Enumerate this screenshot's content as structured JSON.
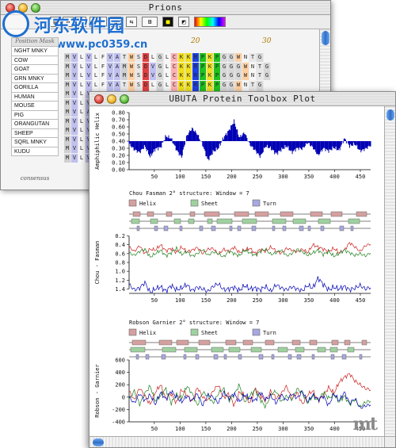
{
  "watermark": {
    "site": "河东软件园",
    "url": "www.pc0359.cn"
  },
  "prions_window": {
    "title": "Prions",
    "position_mask_label": "Position Mask",
    "consensus_label": "consensus",
    "ruler_marks": [
      "20",
      "30"
    ],
    "species": [
      "NGHT MNKY",
      "COW",
      "GOAT",
      "GRN MNKY",
      "GORILLA",
      "HUMAN",
      "MOUSE",
      "PIG",
      "ORANGUTAN",
      "SHEEP",
      "SQRL MNKY",
      "KUDU"
    ],
    "sequences": [
      "MVLVLFVATWSDLGLCKKRPKPGGWNTG",
      "MVLVLFVAMWSDVGLCKKRPKPGGGWNTG",
      "MVLVLFVAMWSDVGLCKKRPKPGGGWNTG",
      "MVLVLFVATWSDLGLCKKRPKPGGWNTG",
      "MVLVLFVATWSDLGLCKKRPKPGGWNTG",
      "MVLVLFVATWSDLGLCKKRPKPGGWNTG",
      "MVLALFVAMWTDVGLCKKRPKPGGWNTG",
      "MVLVLFVATWSDLGLCKKRPKPGGWNTG",
      "MVLVLFVATWSDLGLCKKRPKPGGWNTG",
      "MVLVLFVAMWSDVGLCKKRPKPGGGWNTG",
      "MVLVLFVATWSDLGLCKKRPKPGGWNTG",
      "MVLVLFVAMWSDVGLCKKRPKPGGGWNTG"
    ]
  },
  "plot_window": {
    "title": "UBUTA Protein Toolbox Plot",
    "legend": {
      "helix": "Helix",
      "sheet": "Sheet",
      "turn": "Turn"
    },
    "colors": {
      "helix": "#d4a0a0",
      "sheet": "#a0d0a0",
      "turn": "#a8a8e0",
      "blue": "#0000b4",
      "red": "#cc2020",
      "green": "#208020"
    },
    "logo": "mt"
  },
  "chart_data": [
    {
      "type": "bar",
      "title": "",
      "ylabel": "Amphiphilic Helix",
      "xlabel": "",
      "xticks": [
        50,
        100,
        150,
        200,
        250,
        300,
        350,
        400,
        450
      ],
      "yticks": [
        "0.00",
        "0.10",
        "0.20",
        "0.30",
        "0.40",
        "0.50",
        "0.60",
        "0.70",
        "0.80"
      ],
      "ylim": [
        0,
        0.8
      ],
      "xlim": [
        1,
        470
      ],
      "baseline": 0.4,
      "series": [
        {
          "color": "#0000b4",
          "values_every_10": [
            0.36,
            0.28,
            0.24,
            0.33,
            0.18,
            0.29,
            0.31,
            0.47,
            0.44,
            0.28,
            0.17,
            0.48,
            0.58,
            0.5,
            0.35,
            0.13,
            0.25,
            0.3,
            0.45,
            0.55,
            0.68,
            0.45,
            0.52,
            0.35,
            0.27,
            0.18,
            0.33,
            0.3,
            0.22,
            0.28,
            0.33,
            0.24,
            0.3,
            0.29,
            0.38,
            0.31,
            0.2,
            0.3,
            0.26,
            0.31,
            0.27,
            0.44,
            0.33,
            0.36,
            0.26,
            0.29,
            0.34
          ]
        }
      ]
    },
    {
      "type": "line",
      "title": "Chou Fasman 2° structure:  Window = 7",
      "ylabel": "Chou - Fasman",
      "xticks": [
        50,
        100,
        150,
        200,
        250,
        300,
        350,
        400,
        450
      ],
      "yticks": [
        "0.2",
        "0.4",
        "0.6",
        "0.8",
        "1.0",
        "1.2",
        "1.4"
      ],
      "ylim": [
        0.1,
        1.5
      ],
      "series": [
        {
          "name": "",
          "color": "#cc2020",
          "values_every_10": [
            1.15,
            1.05,
            1.18,
            1.0,
            1.1,
            1.08,
            1.2,
            1.06,
            1.12,
            1.02,
            1.15,
            1.04,
            1.08,
            1.14,
            1.0,
            1.1,
            1.12,
            0.98,
            1.1,
            1.05,
            1.15,
            1.02,
            1.08,
            1.12,
            1.0,
            1.1,
            1.05,
            1.15,
            1.06,
            1.0,
            1.12,
            1.08,
            1.04,
            1.1,
            1.02,
            1.2,
            1.15,
            1.1,
            1.05,
            1.12,
            1.02,
            1.08,
            1.25,
            1.15,
            1.05,
            1.18,
            1.22
          ]
        },
        {
          "name": "",
          "color": "#208020",
          "values_every_10": [
            1.02,
            0.96,
            1.05,
            1.1,
            0.92,
            1.0,
            1.08,
            0.95,
            1.02,
            1.12,
            0.98,
            1.05,
            0.94,
            1.0,
            1.1,
            0.96,
            1.04,
            1.0,
            0.92,
            1.06,
            1.0,
            0.95,
            1.08,
            1.02,
            0.96,
            1.05,
            1.1,
            0.98,
            1.02,
            1.08,
            0.95,
            1.0,
            1.1,
            1.04,
            0.96,
            1.02,
            1.08,
            0.98,
            1.05,
            0.94,
            1.0,
            1.08,
            1.02,
            0.96,
            1.0,
            0.95,
            1.02
          ]
        },
        {
          "name": "",
          "color": "#0000b4",
          "values_every_10": [
            0.3,
            0.18,
            0.22,
            0.35,
            0.12,
            0.2,
            0.25,
            0.15,
            0.28,
            0.18,
            0.22,
            0.3,
            0.16,
            0.24,
            0.2,
            0.14,
            0.26,
            0.32,
            0.18,
            0.2,
            0.24,
            0.16,
            0.28,
            0.2,
            0.22,
            0.18,
            0.26,
            0.14,
            0.3,
            0.22,
            0.18,
            0.25,
            0.2,
            0.16,
            0.28,
            0.22,
            0.45,
            0.3,
            0.18,
            0.24,
            0.2,
            0.26,
            0.18,
            0.22,
            0.28,
            0.2,
            0.24
          ]
        }
      ]
    },
    {
      "type": "line",
      "title": "Robson Garnier 2° structure:   Window = 7",
      "ylabel": "Robson - Garnier",
      "xticks": [
        50,
        100,
        150,
        200,
        250,
        300,
        350,
        400,
        450
      ],
      "yticks": [
        "600",
        "400",
        "200",
        "0",
        "-200",
        "-400"
      ],
      "ylim": [
        -400,
        600
      ],
      "series": [
        {
          "name": "",
          "color": "#cc2020",
          "values_every_10": [
            100,
            -50,
            150,
            20,
            -120,
            80,
            200,
            -30,
            60,
            -100,
            120,
            40,
            -80,
            160,
            0,
            -60,
            100,
            200,
            -20,
            60,
            -140,
            80,
            30,
            -100,
            140,
            20,
            -60,
            100,
            -20,
            60,
            180,
            -40,
            80,
            -120,
            40,
            100,
            -60,
            20,
            160,
            60,
            240,
            320,
            380,
            260,
            200,
            140,
            120
          ]
        },
        {
          "name": "",
          "color": "#208020",
          "values_every_10": [
            -40,
            100,
            -120,
            60,
            180,
            -60,
            20,
            140,
            -100,
            40,
            -20,
            180,
            60,
            -140,
            80,
            20,
            -100,
            60,
            140,
            -60,
            40,
            200,
            -80,
            20,
            120,
            -40,
            -160,
            40,
            100,
            -80,
            20,
            -40,
            140,
            60,
            -100,
            20,
            -60,
            80,
            -20,
            40,
            -80,
            20,
            -120,
            -40,
            -160,
            -80,
            -60
          ]
        },
        {
          "name": "",
          "color": "#0000b4",
          "values_every_10": [
            0,
            -100,
            60,
            -60,
            40,
            -120,
            80,
            -40,
            100,
            0,
            -80,
            20,
            -60,
            60,
            -140,
            40,
            0,
            -100,
            80,
            -20,
            60,
            -80,
            40,
            -20,
            -60,
            80,
            -40,
            20,
            -100,
            40,
            -60,
            60,
            -20,
            100,
            -80,
            40,
            -40,
            20,
            -140,
            60,
            -60,
            80,
            -100,
            -20,
            -180,
            -140,
            -120
          ]
        }
      ]
    }
  ]
}
